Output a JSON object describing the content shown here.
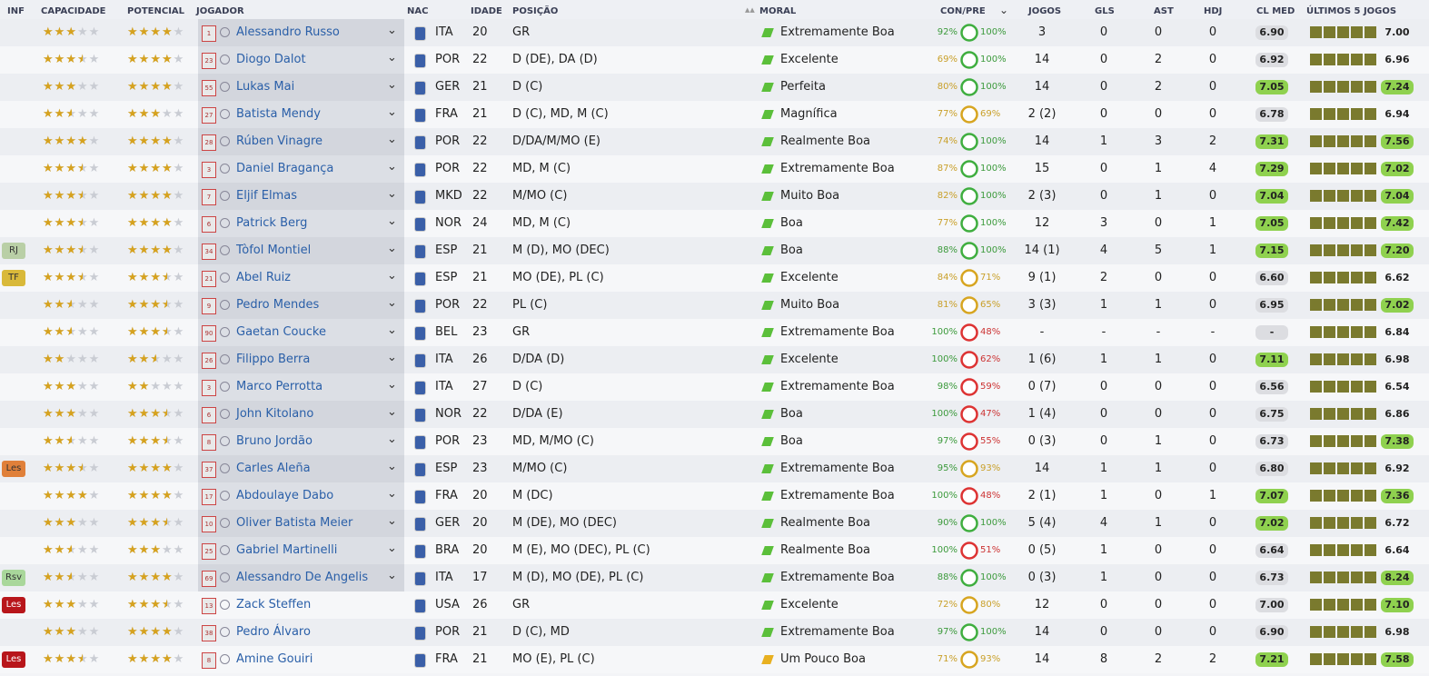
{
  "header": {
    "columns": [
      "INF",
      "CAPACIDADE",
      "POTENCIAL",
      "JOGADOR",
      "NAC",
      "IDADE",
      "POSIÇÃO",
      "MORAL",
      "CON/PRE",
      "JOGOS",
      "GLS",
      "AST",
      "HDJ",
      "CL MED",
      "ÚLTIMOS 5 JOGOS"
    ]
  },
  "rows": [
    {
      "capacidade": 3,
      "potencial": 4,
      "numero": "1",
      "jogador": "Alessandro Russo",
      "nac": "ITA",
      "idade": "20",
      "posicao": "GR",
      "moral": "Extremamente Boa",
      "con": "92%",
      "pre": "100%",
      "jogos": "3",
      "gls": "0",
      "ast": "0",
      "hdj": "0",
      "cl_med": "6.90",
      "ultimo": "7.00"
    },
    {
      "capacidade": 3.5,
      "potencial": 4,
      "numero": "23",
      "jogador": "Diogo Dalot",
      "nac": "POR",
      "idade": "22",
      "posicao": "D (DE), DA (D)",
      "moral": "Excelente",
      "con": "69%",
      "pre": "100%",
      "jogos": "14",
      "gls": "0",
      "ast": "2",
      "hdj": "0",
      "cl_med": "6.92",
      "ultimo": "6.96"
    },
    {
      "capacidade": 3,
      "potencial": 4,
      "numero": "55",
      "jogador": "Lukas Mai",
      "nac": "GER",
      "idade": "21",
      "posicao": "D (C)",
      "moral": "Perfeita",
      "con": "80%",
      "pre": "100%",
      "jogos": "14",
      "gls": "0",
      "ast": "2",
      "hdj": "0",
      "cl_med": "7.05",
      "ultimo": "7.24"
    },
    {
      "capacidade": 2.5,
      "potencial": 3,
      "numero": "27",
      "jogador": "Batista Mendy",
      "nac": "FRA",
      "idade": "21",
      "posicao": "D (C), MD, M (C)",
      "moral": "Magnífica",
      "con": "77%",
      "pre": "69%",
      "jogos": "2 (2)",
      "gls": "0",
      "ast": "0",
      "hdj": "0",
      "cl_med": "6.78",
      "ultimo": "6.94"
    },
    {
      "capacidade": 4,
      "potencial": 4,
      "numero": "28",
      "jogador": "Rúben Vinagre",
      "nac": "POR",
      "idade": "22",
      "posicao": "D/DA/M/MO (E)",
      "moral": "Realmente Boa",
      "con": "74%",
      "pre": "100%",
      "jogos": "14",
      "gls": "1",
      "ast": "3",
      "hdj": "2",
      "cl_med": "7.31",
      "ultimo": "7.56"
    },
    {
      "capacidade": 3.5,
      "potencial": 4,
      "numero": "3",
      "jogador": "Daniel Bragança",
      "nac": "POR",
      "idade": "22",
      "posicao": "MD, M (C)",
      "moral": "Extremamente Boa",
      "con": "87%",
      "pre": "100%",
      "jogos": "15",
      "gls": "0",
      "ast": "1",
      "hdj": "4",
      "cl_med": "7.29",
      "ultimo": "7.02"
    },
    {
      "capacidade": 3.5,
      "potencial": 4,
      "numero": "7",
      "jogador": "Eljif Elmas",
      "nac": "MKD",
      "idade": "22",
      "posicao": "M/MO (C)",
      "moral": "Muito Boa",
      "con": "82%",
      "pre": "100%",
      "jogos": "2 (3)",
      "gls": "0",
      "ast": "1",
      "hdj": "0",
      "cl_med": "7.04",
      "ultimo": "7.04"
    },
    {
      "capacidade": 3.5,
      "potencial": 4,
      "numero": "6",
      "jogador": "Patrick Berg",
      "nac": "NOR",
      "idade": "24",
      "posicao": "MD, M (C)",
      "moral": "Boa",
      "con": "77%",
      "pre": "100%",
      "jogos": "12",
      "gls": "3",
      "ast": "0",
      "hdj": "1",
      "cl_med": "7.05",
      "ultimo": "7.42"
    },
    {
      "inf": {
        "label": "RJ",
        "color": "#b9cfa6"
      },
      "capacidade": 3.5,
      "potencial": 4,
      "numero": "34",
      "jogador": "Tòfol Montiel",
      "nac": "ESP",
      "idade": "21",
      "posicao": "M (D), MO (DEC)",
      "moral": "Boa",
      "con": "88%",
      "pre": "100%",
      "jogos": "14 (1)",
      "gls": "4",
      "ast": "5",
      "hdj": "1",
      "cl_med": "7.15",
      "ultimo": "7.20"
    },
    {
      "inf": {
        "label": "TF",
        "color": "#d9b93a"
      },
      "capacidade": 3.5,
      "potencial": 3.5,
      "numero": "21",
      "jogador": "Abel Ruiz",
      "nac": "ESP",
      "idade": "21",
      "posicao": "MO (DE), PL (C)",
      "moral": "Excelente",
      "con": "84%",
      "pre": "71%",
      "jogos": "9 (1)",
      "gls": "2",
      "ast": "0",
      "hdj": "0",
      "cl_med": "6.60",
      "ultimo": "6.62"
    },
    {
      "capacidade": 2.5,
      "potencial": 3.5,
      "numero": "9",
      "jogador": "Pedro Mendes",
      "nac": "POR",
      "idade": "22",
      "posicao": "PL (C)",
      "moral": "Muito Boa",
      "con": "81%",
      "pre": "65%",
      "jogos": "3 (3)",
      "gls": "1",
      "ast": "1",
      "hdj": "0",
      "cl_med": "6.95",
      "ultimo": "7.02"
    },
    {
      "capacidade": 2.5,
      "potencial": 3.5,
      "numero": "90",
      "jogador": "Gaetan Coucke",
      "nac": "BEL",
      "idade": "23",
      "posicao": "GR",
      "moral": "Extremamente Boa",
      "con": "100%",
      "pre": "48%",
      "jogos": "-",
      "gls": "-",
      "ast": "-",
      "hdj": "-",
      "cl_med": "-",
      "ultimo": "6.84"
    },
    {
      "capacidade": 2,
      "potencial": 2.5,
      "numero": "26",
      "jogador": "Filippo Berra",
      "nac": "ITA",
      "idade": "26",
      "posicao": "D/DA (D)",
      "moral": "Excelente",
      "con": "100%",
      "pre": "62%",
      "jogos": "1 (6)",
      "gls": "1",
      "ast": "1",
      "hdj": "0",
      "cl_med": "7.11",
      "ultimo": "6.98"
    },
    {
      "capacidade": 3,
      "potencial": 2,
      "numero": "3",
      "jogador": "Marco Perrotta",
      "nac": "ITA",
      "idade": "27",
      "posicao": "D (C)",
      "moral": "Extremamente Boa",
      "con": "98%",
      "pre": "59%",
      "jogos": "0 (7)",
      "gls": "0",
      "ast": "0",
      "hdj": "0",
      "cl_med": "6.56",
      "ultimo": "6.54"
    },
    {
      "capacidade": 3,
      "potencial": 3.5,
      "numero": "6",
      "jogador": "John Kitolano",
      "nac": "NOR",
      "idade": "22",
      "posicao": "D/DA (E)",
      "moral": "Boa",
      "con": "100%",
      "pre": "47%",
      "jogos": "1 (4)",
      "gls": "0",
      "ast": "0",
      "hdj": "0",
      "cl_med": "6.75",
      "ultimo": "6.86"
    },
    {
      "capacidade": 2.5,
      "potencial": 3.5,
      "numero": "8",
      "jogador": "Bruno Jordão",
      "nac": "POR",
      "idade": "23",
      "posicao": "MD, M/MO (C)",
      "moral": "Boa",
      "con": "97%",
      "pre": "55%",
      "jogos": "0 (3)",
      "gls": "0",
      "ast": "1",
      "hdj": "0",
      "cl_med": "6.73",
      "ultimo": "7.38"
    },
    {
      "inf": {
        "label": "Les",
        "color": "#e0803a"
      },
      "capacidade": 3.5,
      "potencial": 4,
      "numero": "37",
      "jogador": "Carles Aleña",
      "nac": "ESP",
      "idade": "23",
      "posicao": "M/MO (C)",
      "moral": "Extremamente Boa",
      "con": "95%",
      "pre": "93%",
      "jogos": "14",
      "gls": "1",
      "ast": "1",
      "hdj": "0",
      "cl_med": "6.80",
      "ultimo": "6.92"
    },
    {
      "capacidade": 4,
      "potencial": 4,
      "numero": "17",
      "jogador": "Abdoulaye Dabo",
      "nac": "FRA",
      "idade": "20",
      "posicao": "M (DC)",
      "moral": "Extremamente Boa",
      "con": "100%",
      "pre": "48%",
      "jogos": "2 (1)",
      "gls": "1",
      "ast": "0",
      "hdj": "1",
      "cl_med": "7.07",
      "ultimo": "7.36"
    },
    {
      "capacidade": 3,
      "potencial": 3.5,
      "numero": "10",
      "jogador": "Oliver Batista Meier",
      "nac": "GER",
      "idade": "20",
      "posicao": "M (DE), MO (DEC)",
      "moral": "Realmente Boa",
      "con": "90%",
      "pre": "100%",
      "jogos": "5 (4)",
      "gls": "4",
      "ast": "1",
      "hdj": "0",
      "cl_med": "7.02",
      "ultimo": "6.72"
    },
    {
      "capacidade": 2.5,
      "potencial": 3,
      "numero": "25",
      "jogador": "Gabriel Martinelli",
      "nac": "BRA",
      "idade": "20",
      "posicao": "M (E), MO (DEC), PL (C)",
      "moral": "Realmente Boa",
      "con": "100%",
      "pre": "51%",
      "jogos": "0 (5)",
      "gls": "1",
      "ast": "0",
      "hdj": "0",
      "cl_med": "6.64",
      "ultimo": "6.64"
    },
    {
      "inf": {
        "label": "Rsv",
        "color": "#a9d79b"
      },
      "capacidade": 2.5,
      "potencial": 4,
      "numero": "69",
      "jogador": "Alessandro De Angelis",
      "nac": "ITA",
      "idade": "17",
      "posicao": "M (D), MO (DE), PL (C)",
      "moral": "Extremamente Boa",
      "con": "88%",
      "pre": "100%",
      "jogos": "0 (3)",
      "gls": "1",
      "ast": "0",
      "hdj": "0",
      "cl_med": "6.73",
      "ultimo": "8.24"
    },
    {
      "inf": {
        "label": "Les",
        "color": "#b8161b"
      },
      "capacidade": 3,
      "potencial": 3.5,
      "numero": "13",
      "jogador": "Zack Steffen",
      "nac": "USA",
      "idade": "26",
      "posicao": "GR",
      "moral": "Excelente",
      "con": "72%",
      "pre": "80%",
      "jogos": "12",
      "gls": "0",
      "ast": "0",
      "hdj": "0",
      "cl_med": "7.00",
      "ultimo": "7.10"
    },
    {
      "capacidade": 3,
      "potencial": 4,
      "numero": "38",
      "jogador": "Pedro Álvaro",
      "nac": "POR",
      "idade": "21",
      "posicao": "D (C), MD",
      "moral": "Extremamente Boa",
      "con": "97%",
      "pre": "100%",
      "jogos": "14",
      "gls": "0",
      "ast": "0",
      "hdj": "0",
      "cl_med": "6.90",
      "ultimo": "6.98"
    },
    {
      "inf": {
        "label": "Les",
        "color": "#b8161b"
      },
      "capacidade": 3.5,
      "potencial": 4,
      "numero": "8",
      "jogador": "Amine Gouiri",
      "nac": "FRA",
      "idade": "21",
      "posicao": "MO (E), PL (C)",
      "moral": "Um Pouco Boa",
      "con": "71%",
      "pre": "93%",
      "jogos": "14",
      "gls": "8",
      "ast": "2",
      "hdj": "2",
      "cl_med": "7.21",
      "ultimo": "7.58"
    }
  ]
}
